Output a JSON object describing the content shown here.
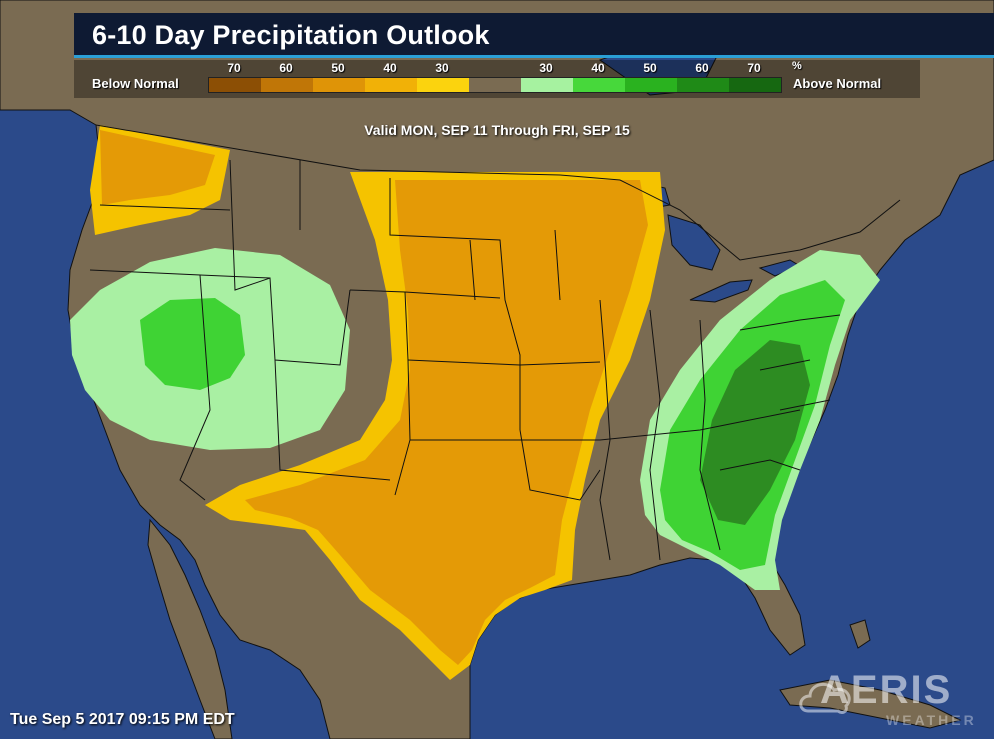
{
  "header": {
    "title": "6-10 Day Precipitation Outlook"
  },
  "legend": {
    "below_label": "Below Normal",
    "above_label": "Above Normal",
    "unit": "%",
    "below_ticks": [
      "70",
      "60",
      "50",
      "40",
      "30"
    ],
    "above_ticks": [
      "30",
      "40",
      "50",
      "60",
      "70"
    ],
    "below_colors": [
      "#8c4f05",
      "#c07607",
      "#df9407",
      "#f1b107",
      "#fbd30e"
    ],
    "neutral_color": "#7a6b52",
    "above_colors": [
      "#a6f2a0",
      "#47d83b",
      "#2ab21f",
      "#1f8a17",
      "#166811"
    ]
  },
  "valid_text": "Valid MON, SEP 11 Through FRI, SEP 15",
  "timestamp": "Tue Sep 5 2017 09:15 PM EDT",
  "brand": {
    "logo_text": "AERIS",
    "logo_sub": "WEATHER"
  },
  "colors": {
    "ocean": "#2b4a8a",
    "land_neutral": "#7a6b52",
    "light_orange": "#f5c300",
    "orange": "#e49a06",
    "light_green": "#a9f0a3",
    "green": "#3fd334",
    "dark_green": "#2d8c22"
  }
}
